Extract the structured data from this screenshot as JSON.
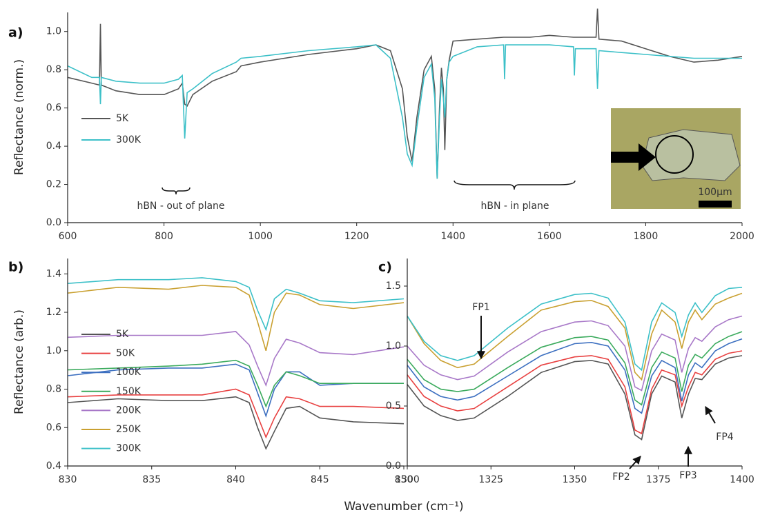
{
  "chart_data": [
    {
      "type": "line",
      "panel_label": "a)",
      "ylabel": "Reflectance (norm.)",
      "x": [
        600,
        650,
        666,
        668,
        670,
        700,
        750,
        800,
        830,
        838,
        843,
        848,
        860,
        900,
        950,
        960,
        1000,
        1100,
        1200,
        1240,
        1270,
        1295,
        1305,
        1315,
        1325,
        1340,
        1355,
        1362,
        1367,
        1372,
        1376,
        1380,
        1383,
        1387,
        1392,
        1400,
        1450,
        1505,
        1507,
        1509,
        1560,
        1600,
        1650,
        1652,
        1654,
        1697,
        1700,
        1703,
        1750,
        1800,
        1850,
        1900,
        1950,
        2000
      ],
      "series": [
        {
          "name": "5K",
          "color": "#555555",
          "values": [
            0.76,
            0.73,
            0.72,
            1.04,
            0.72,
            0.69,
            0.67,
            0.67,
            0.7,
            0.73,
            0.62,
            0.61,
            0.67,
            0.74,
            0.79,
            0.82,
            0.84,
            0.88,
            0.91,
            0.93,
            0.9,
            0.7,
            0.45,
            0.32,
            0.55,
            0.8,
            0.87,
            0.7,
            0.23,
            0.6,
            0.81,
            0.7,
            0.38,
            0.75,
            0.85,
            0.95,
            0.96,
            0.97,
            0.97,
            0.97,
            0.97,
            0.98,
            0.97,
            0.97,
            0.97,
            0.97,
            1.12,
            0.96,
            0.95,
            0.91,
            0.87,
            0.84,
            0.85,
            0.87
          ]
        },
        {
          "name": "300K",
          "color": "#3cc0c8",
          "values": [
            0.82,
            0.76,
            0.76,
            0.62,
            0.76,
            0.74,
            0.73,
            0.73,
            0.75,
            0.77,
            0.44,
            0.68,
            0.7,
            0.78,
            0.84,
            0.86,
            0.87,
            0.9,
            0.92,
            0.93,
            0.86,
            0.55,
            0.36,
            0.3,
            0.5,
            0.76,
            0.83,
            0.65,
            0.23,
            0.55,
            0.75,
            0.65,
            0.55,
            0.75,
            0.84,
            0.87,
            0.92,
            0.93,
            0.75,
            0.93,
            0.93,
            0.93,
            0.92,
            0.77,
            0.91,
            0.91,
            0.7,
            0.9,
            0.89,
            0.88,
            0.87,
            0.86,
            0.86,
            0.86
          ]
        }
      ],
      "xlim": [
        600,
        2000
      ],
      "xticks": [
        600,
        800,
        1000,
        1200,
        1400,
        1600,
        1800,
        2000
      ],
      "ylim": [
        0,
        1.1
      ],
      "yticks": [
        {
          "value": 0,
          "label": "0.0"
        },
        0.2,
        0.4,
        0.6,
        0.8,
        {
          "value": 1,
          "label": "1.0"
        }
      ],
      "legend": "middle-left",
      "annotations": [
        "hBN - out of plane",
        "hBN - in plane",
        "100µm"
      ]
    },
    {
      "type": "line",
      "panel_label": "b)",
      "ylabel": "Reflectance (arb.)",
      "x": [
        830,
        833,
        836,
        838,
        840,
        840.8,
        841.3,
        841.8,
        842.3,
        843,
        843.8,
        845,
        847,
        850
      ],
      "series": [
        {
          "name": "5K",
          "color": "#555555",
          "values": [
            0.73,
            0.75,
            0.74,
            0.74,
            0.76,
            0.73,
            0.6,
            0.49,
            0.58,
            0.7,
            0.71,
            0.65,
            0.63,
            0.62
          ]
        },
        {
          "name": "50K",
          "color": "#e84040",
          "values": [
            0.76,
            0.77,
            0.77,
            0.77,
            0.8,
            0.77,
            0.66,
            0.55,
            0.65,
            0.76,
            0.75,
            0.71,
            0.71,
            0.7
          ]
        },
        {
          "name": "100K",
          "color": "#3c6fc0",
          "values": [
            0.87,
            0.9,
            0.91,
            0.91,
            0.93,
            0.9,
            0.78,
            0.66,
            0.8,
            0.89,
            0.89,
            0.82,
            0.83,
            0.83
          ]
        },
        {
          "name": "150K",
          "color": "#3aaa5c",
          "values": [
            0.9,
            0.91,
            0.92,
            0.93,
            0.95,
            0.92,
            0.82,
            0.71,
            0.82,
            0.89,
            0.87,
            0.83,
            0.83,
            0.83
          ]
        },
        {
          "name": "200K",
          "color": "#a878c8",
          "values": [
            1.07,
            1.08,
            1.08,
            1.08,
            1.1,
            1.03,
            0.92,
            0.82,
            0.96,
            1.06,
            1.04,
            0.99,
            0.98,
            1.02
          ]
        },
        {
          "name": "250K",
          "color": "#c9a030",
          "values": [
            1.3,
            1.33,
            1.32,
            1.34,
            1.33,
            1.29,
            1.15,
            1.0,
            1.2,
            1.3,
            1.29,
            1.24,
            1.22,
            1.25
          ]
        },
        {
          "name": "300K",
          "color": "#3cc0c8",
          "values": [
            1.35,
            1.37,
            1.37,
            1.38,
            1.36,
            1.33,
            1.21,
            1.11,
            1.27,
            1.32,
            1.3,
            1.26,
            1.25,
            1.27
          ]
        }
      ],
      "xlim": [
        830,
        850
      ],
      "xticks": [
        830,
        835,
        840,
        845,
        850
      ],
      "ylim": [
        0.4,
        1.48
      ],
      "yticks": [
        0.4,
        0.6,
        0.8,
        {
          "value": 1,
          "label": "1.0"
        },
        1.2,
        1.4
      ],
      "legend": "lower-left"
    },
    {
      "type": "line",
      "panel_label": "c)",
      "xlabel": "Wavenumber (cm⁻¹)",
      "x": [
        1300,
        1305,
        1310,
        1315,
        1320,
        1330,
        1340,
        1350,
        1355,
        1360,
        1365,
        1368,
        1370,
        1373,
        1376,
        1380,
        1382,
        1384,
        1386,
        1388,
        1392,
        1396,
        1400
      ],
      "series": [
        {
          "name": "5K",
          "color": "#555555",
          "values": [
            0.68,
            0.5,
            0.42,
            0.38,
            0.4,
            0.58,
            0.78,
            0.87,
            0.88,
            0.85,
            0.6,
            0.26,
            0.22,
            0.6,
            0.75,
            0.7,
            0.4,
            0.6,
            0.73,
            0.72,
            0.85,
            0.9,
            0.92
          ]
        },
        {
          "name": "50K",
          "color": "#e84040",
          "values": [
            0.76,
            0.58,
            0.5,
            0.46,
            0.48,
            0.66,
            0.84,
            0.91,
            0.92,
            0.89,
            0.66,
            0.3,
            0.27,
            0.64,
            0.8,
            0.76,
            0.5,
            0.66,
            0.78,
            0.76,
            0.89,
            0.94,
            0.96
          ]
        },
        {
          "name": "100K",
          "color": "#3c6fc0",
          "values": [
            0.84,
            0.66,
            0.58,
            0.55,
            0.58,
            0.75,
            0.92,
            1.02,
            1.03,
            1.0,
            0.8,
            0.48,
            0.44,
            0.75,
            0.88,
            0.82,
            0.54,
            0.76,
            0.86,
            0.82,
            0.96,
            1.02,
            1.06
          ]
        },
        {
          "name": "150K",
          "color": "#3aaa5c",
          "values": [
            0.89,
            0.72,
            0.64,
            0.62,
            0.64,
            0.82,
            0.99,
            1.07,
            1.08,
            1.05,
            0.86,
            0.55,
            0.51,
            0.82,
            0.95,
            0.9,
            0.62,
            0.84,
            0.93,
            0.9,
            1.02,
            1.08,
            1.12
          ]
        },
        {
          "name": "200K",
          "color": "#a878c8",
          "values": [
            1.0,
            0.84,
            0.76,
            0.72,
            0.75,
            0.95,
            1.12,
            1.2,
            1.21,
            1.17,
            1.0,
            0.66,
            0.63,
            0.96,
            1.1,
            1.05,
            0.78,
            0.98,
            1.07,
            1.04,
            1.16,
            1.22,
            1.25
          ]
        },
        {
          "name": "250K",
          "color": "#c9a030",
          "values": [
            1.25,
            1.02,
            0.88,
            0.82,
            0.85,
            1.08,
            1.3,
            1.37,
            1.38,
            1.33,
            1.15,
            0.78,
            0.72,
            1.1,
            1.3,
            1.2,
            0.98,
            1.2,
            1.3,
            1.22,
            1.35,
            1.4,
            1.44
          ]
        },
        {
          "name": "300K",
          "color": "#3cc0c8",
          "values": [
            1.25,
            1.04,
            0.92,
            0.88,
            0.92,
            1.15,
            1.35,
            1.43,
            1.44,
            1.4,
            1.2,
            0.85,
            0.8,
            1.2,
            1.36,
            1.28,
            1.08,
            1.26,
            1.36,
            1.28,
            1.42,
            1.48,
            1.49
          ]
        }
      ],
      "xlim": [
        1300,
        1400
      ],
      "xticks": [
        1300,
        1325,
        1350,
        1375,
        1400
      ],
      "ylim": [
        0,
        1.73
      ],
      "yticks": [
        {
          "value": 0,
          "label": "0.0"
        },
        0.5,
        {
          "value": 1,
          "label": "1.0"
        },
        1.5
      ],
      "annotations": [
        "FP1",
        "FP2",
        "FP3",
        "FP4"
      ]
    }
  ]
}
